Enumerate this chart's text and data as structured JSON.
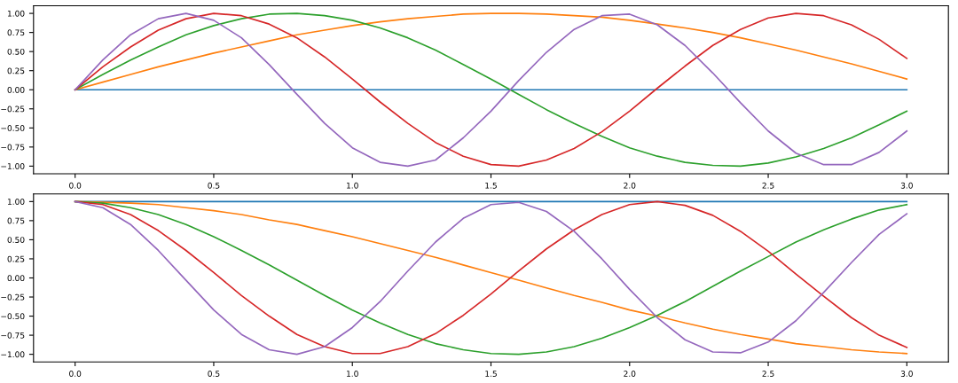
{
  "chart_data": [
    {
      "type": "line",
      "x": [
        0,
        0.1,
        0.2,
        0.3,
        0.4,
        0.5,
        0.6,
        0.7,
        0.8,
        0.9,
        1.0,
        1.1,
        1.2,
        1.3,
        1.4,
        1.5,
        1.6,
        1.7,
        1.8,
        1.9,
        2.0,
        2.1,
        2.2,
        2.3,
        2.4,
        2.5,
        2.6,
        2.7,
        2.8,
        2.9,
        3.0
      ],
      "series": [
        {
          "color": "#1f77b4",
          "values": [
            0,
            0,
            0,
            0,
            0,
            0,
            0,
            0,
            0,
            0,
            0,
            0,
            0,
            0,
            0,
            0,
            0,
            0,
            0,
            0,
            0,
            0,
            0,
            0,
            0,
            0,
            0,
            0,
            0,
            0,
            0
          ]
        },
        {
          "color": "#ff7f0e",
          "values": [
            0,
            0.1,
            0.2,
            0.3,
            0.39,
            0.48,
            0.56,
            0.64,
            0.72,
            0.78,
            0.84,
            0.89,
            0.93,
            0.96,
            0.99,
            1.0,
            1.0,
            0.99,
            0.97,
            0.95,
            0.91,
            0.86,
            0.81,
            0.75,
            0.68,
            0.6,
            0.52,
            0.43,
            0.34,
            0.24,
            0.14
          ]
        },
        {
          "color": "#2ca02c",
          "values": [
            0,
            0.2,
            0.39,
            0.56,
            0.72,
            0.84,
            0.93,
            0.99,
            1.0,
            0.97,
            0.91,
            0.81,
            0.68,
            0.52,
            0.33,
            0.14,
            -0.06,
            -0.26,
            -0.44,
            -0.61,
            -0.76,
            -0.87,
            -0.95,
            -0.99,
            -1.0,
            -0.96,
            -0.88,
            -0.77,
            -0.63,
            -0.46,
            -0.28
          ]
        },
        {
          "color": "#d62728",
          "values": [
            0,
            0.3,
            0.56,
            0.78,
            0.93,
            1.0,
            0.97,
            0.86,
            0.68,
            0.43,
            0.14,
            -0.16,
            -0.44,
            -0.69,
            -0.87,
            -0.98,
            -1.0,
            -0.92,
            -0.77,
            -0.55,
            -0.28,
            0.02,
            0.31,
            0.58,
            0.79,
            0.94,
            1.0,
            0.97,
            0.85,
            0.66,
            0.41
          ]
        },
        {
          "color": "#9467bd",
          "values": [
            0,
            0.39,
            0.72,
            0.93,
            1.0,
            0.91,
            0.68,
            0.33,
            -0.06,
            -0.44,
            -0.76,
            -0.95,
            -1.0,
            -0.92,
            -0.63,
            -0.28,
            0.12,
            0.49,
            0.79,
            0.97,
            0.99,
            0.85,
            0.58,
            0.22,
            -0.17,
            -0.54,
            -0.83,
            -0.98,
            -0.98,
            -0.82,
            -0.54
          ]
        }
      ],
      "xlim": [
        -0.15,
        3.15
      ],
      "ylim": [
        -1.1,
        1.1
      ],
      "xticks": [
        {
          "value": 0,
          "label": "0.0"
        },
        {
          "value": 0.5,
          "label": "0.5"
        },
        {
          "value": 1,
          "label": "1.0"
        },
        {
          "value": 1.5,
          "label": "1.5"
        },
        {
          "value": 2,
          "label": "2.0"
        },
        {
          "value": 2.5,
          "label": "2.5"
        },
        {
          "value": 3,
          "label": "3.0"
        }
      ],
      "yticks": [
        {
          "value": -1,
          "label": "−1.00"
        },
        {
          "value": -0.75,
          "label": "−0.75"
        },
        {
          "value": -0.5,
          "label": "−0.50"
        },
        {
          "value": -0.25,
          "label": "−0.25"
        },
        {
          "value": 0,
          "label": "0.00"
        },
        {
          "value": 0.25,
          "label": "0.25"
        },
        {
          "value": 0.5,
          "label": "0.50"
        },
        {
          "value": 0.75,
          "label": "0.75"
        },
        {
          "value": 1,
          "label": "1.00"
        }
      ]
    },
    {
      "type": "line",
      "x": [
        0,
        0.1,
        0.2,
        0.3,
        0.4,
        0.5,
        0.6,
        0.7,
        0.8,
        0.9,
        1.0,
        1.1,
        1.2,
        1.3,
        1.4,
        1.5,
        1.6,
        1.7,
        1.8,
        1.9,
        2.0,
        2.1,
        2.2,
        2.3,
        2.4,
        2.5,
        2.6,
        2.7,
        2.8,
        2.9,
        3.0
      ],
      "series": [
        {
          "color": "#1f77b4",
          "values": [
            1,
            1,
            1,
            1,
            1,
            1,
            1,
            1,
            1,
            1,
            1,
            1,
            1,
            1,
            1,
            1,
            1,
            1,
            1,
            1,
            1,
            1,
            1,
            1,
            1,
            1,
            1,
            1,
            1,
            1,
            1
          ]
        },
        {
          "color": "#ff7f0e",
          "values": [
            1,
            0.99,
            0.98,
            0.96,
            0.92,
            0.88,
            0.83,
            0.76,
            0.7,
            0.62,
            0.54,
            0.45,
            0.36,
            0.27,
            0.17,
            0.07,
            -0.03,
            -0.13,
            -0.23,
            -0.32,
            -0.42,
            -0.5,
            -0.59,
            -0.67,
            -0.74,
            -0.8,
            -0.86,
            -0.9,
            -0.94,
            -0.97,
            -0.99
          ]
        },
        {
          "color": "#2ca02c",
          "values": [
            1,
            0.98,
            0.92,
            0.83,
            0.7,
            0.54,
            0.36,
            0.17,
            -0.03,
            -0.23,
            -0.42,
            -0.59,
            -0.74,
            -0.86,
            -0.94,
            -0.99,
            -1.0,
            -0.97,
            -0.9,
            -0.79,
            -0.65,
            -0.49,
            -0.31,
            -0.11,
            0.09,
            0.28,
            0.47,
            0.63,
            0.77,
            0.89,
            0.96
          ]
        },
        {
          "color": "#d62728",
          "values": [
            1,
            0.96,
            0.83,
            0.62,
            0.36,
            0.07,
            -0.23,
            -0.5,
            -0.74,
            -0.9,
            -0.99,
            -0.99,
            -0.9,
            -0.73,
            -0.49,
            -0.21,
            0.09,
            0.38,
            0.63,
            0.83,
            0.96,
            1.0,
            0.95,
            0.82,
            0.61,
            0.35,
            0.05,
            -0.24,
            -0.52,
            -0.75,
            -0.91
          ]
        },
        {
          "color": "#9467bd",
          "values": [
            1,
            0.92,
            0.7,
            0.36,
            -0.03,
            -0.42,
            -0.74,
            -0.94,
            -1.0,
            -0.9,
            -0.65,
            -0.31,
            0.09,
            0.47,
            0.78,
            0.96,
            0.99,
            0.87,
            0.61,
            0.25,
            -0.15,
            -0.52,
            -0.81,
            -0.97,
            -0.98,
            -0.84,
            -0.56,
            -0.19,
            0.2,
            0.57,
            0.84
          ]
        }
      ],
      "xlim": [
        -0.15,
        3.15
      ],
      "ylim": [
        -1.1,
        1.1
      ],
      "xticks": [
        {
          "value": 0,
          "label": "0.0"
        },
        {
          "value": 0.5,
          "label": "0.5"
        },
        {
          "value": 1,
          "label": "1.0"
        },
        {
          "value": 1.5,
          "label": "1.5"
        },
        {
          "value": 2,
          "label": "2.0"
        },
        {
          "value": 2.5,
          "label": "2.5"
        },
        {
          "value": 3,
          "label": "3.0"
        }
      ],
      "yticks": [
        {
          "value": -1,
          "label": "−1.00"
        },
        {
          "value": -0.75,
          "label": "−0.75"
        },
        {
          "value": -0.5,
          "label": "−0.50"
        },
        {
          "value": -0.25,
          "label": "−0.25"
        },
        {
          "value": 0,
          "label": "0.00"
        },
        {
          "value": 0.25,
          "label": "0.25"
        },
        {
          "value": 0.5,
          "label": "0.50"
        },
        {
          "value": 0.75,
          "label": "0.75"
        },
        {
          "value": 1,
          "label": "1.00"
        }
      ]
    }
  ]
}
